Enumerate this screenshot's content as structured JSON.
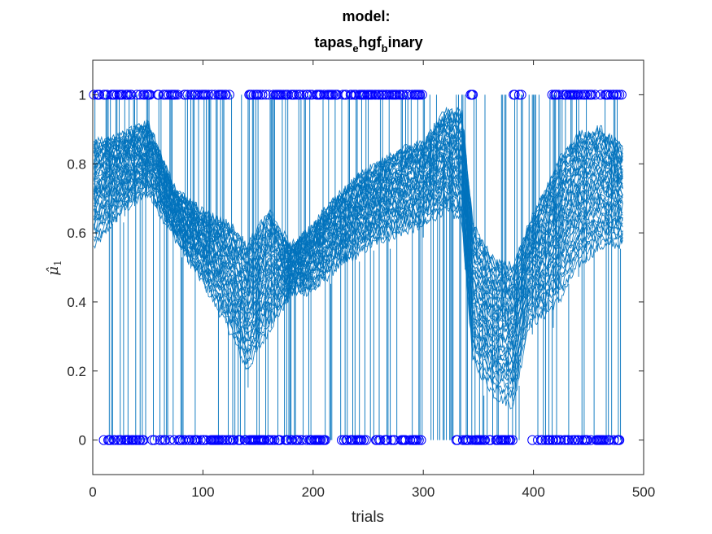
{
  "chart_data": {
    "type": "line",
    "title": {
      "line1": "model:",
      "line2_parts": [
        "tapas",
        "e",
        "hgf",
        "b",
        "inary"
      ]
    },
    "xlabel": "trials",
    "ylabel": {
      "symbol": "μ̂",
      "subscript": "1"
    },
    "xlim": [
      0,
      500
    ],
    "ylim": [
      -0.1,
      1.1
    ],
    "xticks": [
      0,
      100,
      200,
      300,
      400,
      500
    ],
    "yticks": [
      0,
      0.2,
      0.4,
      0.6,
      0.8,
      1
    ],
    "ytick_labels": [
      "0",
      "0.2",
      "0.4",
      "0.6",
      "0.8",
      "1"
    ],
    "grid": false,
    "n_trials": 481,
    "series_color": "#0072BD",
    "input_marker_color": "#0000FF",
    "trend_envelope": {
      "x": [
        0,
        25,
        50,
        75,
        100,
        125,
        140,
        160,
        180,
        200,
        220,
        240,
        260,
        280,
        300,
        320,
        335,
        345,
        365,
        382,
        395,
        410,
        425,
        440,
        460,
        481
      ],
      "upper": [
        0.86,
        0.88,
        0.92,
        0.72,
        0.66,
        0.62,
        0.56,
        0.66,
        0.56,
        0.62,
        0.7,
        0.76,
        0.8,
        0.84,
        0.86,
        0.95,
        0.95,
        0.62,
        0.52,
        0.5,
        0.62,
        0.72,
        0.82,
        0.88,
        0.9,
        0.85
      ],
      "lower": [
        0.5,
        0.62,
        0.68,
        0.56,
        0.42,
        0.26,
        0.14,
        0.26,
        0.4,
        0.4,
        0.46,
        0.5,
        0.54,
        0.56,
        0.58,
        0.62,
        0.58,
        0.16,
        0.06,
        0.03,
        0.28,
        0.3,
        0.34,
        0.44,
        0.5,
        0.52
      ]
    },
    "inputs_ones_ranges": [
      [
        1,
        52
      ],
      [
        58,
        125
      ],
      [
        138,
        300
      ],
      [
        340,
        345
      ],
      [
        380,
        390
      ],
      [
        416,
        481
      ]
    ],
    "inputs_zeros_ranges": [
      [
        8,
        46
      ],
      [
        54,
        212
      ],
      [
        226,
        298
      ],
      [
        330,
        383
      ],
      [
        397,
        478
      ]
    ],
    "input_density_note": "",
    "frame_color": "#262626"
  }
}
